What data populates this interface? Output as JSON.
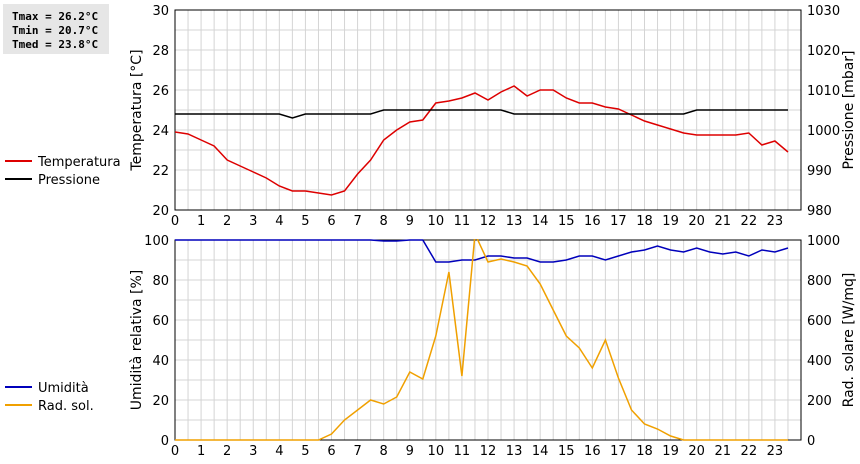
{
  "stats": {
    "tmax": "Tmax = 26.2°C",
    "tmin": "Tmin = 20.7°C",
    "tmed": "Tmed = 23.8°C"
  },
  "colors": {
    "temperature": "#dd0000",
    "pressure": "#000000",
    "humidity": "#0000bb",
    "solar": "#f0a000"
  },
  "chart_data": [
    {
      "type": "line",
      "x_ticks": [
        "0",
        "1",
        "2",
        "3",
        "4",
        "5",
        "6",
        "7",
        "8",
        "9",
        "10",
        "11",
        "12",
        "13",
        "14",
        "15",
        "16",
        "17",
        "18",
        "19",
        "20",
        "21",
        "22",
        "23"
      ],
      "xlim": [
        0,
        24
      ],
      "ylabel_left": "Temperatura [°C]",
      "ylabel_right": "Pressione [mbar]",
      "ylim_left": [
        20,
        30
      ],
      "ylim_right": [
        980,
        1030
      ],
      "yticks_left": [
        "20",
        "22",
        "24",
        "26",
        "28",
        "30"
      ],
      "yticks_right": [
        "980",
        "990",
        "1000",
        "1010",
        "1020",
        "1030"
      ],
      "grid": true,
      "legend": [
        "Temperatura",
        "Pressione"
      ],
      "series": [
        {
          "name": "Temperatura",
          "axis": "left",
          "x": [
            0,
            0.5,
            1,
            1.5,
            2,
            2.5,
            3,
            3.5,
            4,
            4.5,
            5,
            5.5,
            6,
            6.5,
            7,
            7.5,
            8,
            8.5,
            9,
            9.5,
            10,
            10.5,
            11,
            11.5,
            12,
            12.5,
            13,
            13.5,
            14,
            14.5,
            15,
            15.5,
            16,
            16.5,
            17,
            17.5,
            18,
            18.5,
            19,
            19.5,
            20,
            20.5,
            21,
            21.5,
            22,
            22.5,
            23,
            23.5
          ],
          "values": [
            23.9,
            23.8,
            23.5,
            23.2,
            22.5,
            22.2,
            21.9,
            21.6,
            21.2,
            20.95,
            20.95,
            20.85,
            20.75,
            20.95,
            21.8,
            22.5,
            23.5,
            24.0,
            24.4,
            24.5,
            25.35,
            25.45,
            25.6,
            25.85,
            25.5,
            25.9,
            26.2,
            25.7,
            26.0,
            26.0,
            25.6,
            25.35,
            25.35,
            25.15,
            25.05,
            24.75,
            24.45,
            24.25,
            24.05,
            23.85,
            23.75,
            23.75,
            23.75,
            23.75,
            23.85,
            23.25,
            23.45,
            22.9
          ]
        },
        {
          "name": "Pressione",
          "axis": "right",
          "x": [
            0,
            0.5,
            1,
            1.5,
            2,
            2.5,
            3,
            3.5,
            4,
            4.5,
            5,
            5.5,
            6,
            6.5,
            7,
            7.5,
            8,
            8.5,
            9,
            9.5,
            10,
            10.5,
            11,
            11.5,
            12,
            12.5,
            13,
            13.5,
            14,
            14.5,
            15,
            15.5,
            16,
            16.5,
            17,
            17.5,
            18,
            18.5,
            19,
            19.5,
            20,
            20.5,
            21,
            21.5,
            22,
            22.5,
            23,
            23.5
          ],
          "values": [
            1004,
            1004,
            1004,
            1004,
            1004,
            1004,
            1004,
            1004,
            1004,
            1003,
            1004,
            1004,
            1004,
            1004,
            1004,
            1004,
            1005,
            1005,
            1005,
            1005,
            1005,
            1005,
            1005,
            1005,
            1005,
            1005,
            1004,
            1004,
            1004,
            1004,
            1004,
            1004,
            1004,
            1004,
            1004,
            1004,
            1004,
            1004,
            1004,
            1004,
            1005,
            1005,
            1005,
            1005,
            1005,
            1005,
            1005,
            1005
          ]
        }
      ]
    },
    {
      "type": "line",
      "x_ticks": [
        "0",
        "1",
        "2",
        "3",
        "4",
        "5",
        "6",
        "7",
        "8",
        "9",
        "10",
        "11",
        "12",
        "13",
        "14",
        "15",
        "16",
        "17",
        "18",
        "19",
        "20",
        "21",
        "22",
        "23"
      ],
      "xlim": [
        0,
        24
      ],
      "ylabel_left": "Umidità relativa [%]",
      "ylabel_right": "Rad. solare [W/mq]",
      "ylim_left": [
        0,
        100
      ],
      "ylim_right": [
        0,
        1000
      ],
      "yticks_left": [
        "0",
        "20",
        "40",
        "60",
        "80",
        "100"
      ],
      "yticks_right": [
        "0",
        "200",
        "400",
        "600",
        "800",
        "1000"
      ],
      "grid": true,
      "legend": [
        "Umidità",
        "Rad. sol."
      ],
      "series": [
        {
          "name": "Umidità",
          "axis": "left",
          "x": [
            0,
            0.5,
            1,
            1.5,
            2,
            2.5,
            3,
            3.5,
            4,
            4.5,
            5,
            5.5,
            6,
            6.5,
            7,
            7.5,
            8,
            8.5,
            9,
            9.5,
            10,
            10.5,
            11,
            11.5,
            12,
            12.5,
            13,
            13.5,
            14,
            14.5,
            15,
            15.5,
            16,
            16.5,
            17,
            17.5,
            18,
            18.5,
            19,
            19.5,
            20,
            20.5,
            21,
            21.5,
            22,
            22.5,
            23,
            23.5
          ],
          "values": [
            100,
            100,
            100,
            100,
            100,
            100,
            100,
            100,
            100,
            100,
            100,
            100,
            100,
            100,
            100,
            100,
            99.5,
            99.5,
            100,
            100,
            89,
            89,
            90,
            90,
            92,
            92,
            91,
            91,
            89,
            89,
            90,
            92,
            92,
            90,
            92,
            94,
            95,
            97,
            95,
            94,
            96,
            94,
            93,
            94,
            92,
            95,
            94,
            96
          ]
        },
        {
          "name": "Rad. sol.",
          "axis": "right",
          "x": [
            0,
            0.5,
            1,
            1.5,
            2,
            2.5,
            3,
            3.5,
            4,
            4.5,
            5,
            5.5,
            6,
            6.5,
            7,
            7.5,
            8,
            8.5,
            9,
            9.5,
            10,
            10.5,
            11,
            11.5,
            12,
            12.5,
            13,
            13.5,
            14,
            14.5,
            15,
            15.5,
            16,
            16.5,
            17,
            17.5,
            18,
            18.5,
            19,
            19.5,
            20,
            20.5,
            21,
            21.5,
            22,
            22.5,
            23,
            23.5
          ],
          "values": [
            0,
            0,
            0,
            0,
            0,
            0,
            0,
            0,
            0,
            0,
            0,
            0,
            30,
            100,
            150,
            200,
            180,
            215,
            340,
            305,
            520,
            840,
            320,
            1030,
            890,
            905,
            890,
            870,
            780,
            650,
            520,
            460,
            360,
            500,
            310,
            150,
            80,
            55,
            20,
            0,
            0,
            0,
            0,
            0,
            0,
            0,
            0,
            0
          ]
        }
      ]
    }
  ]
}
